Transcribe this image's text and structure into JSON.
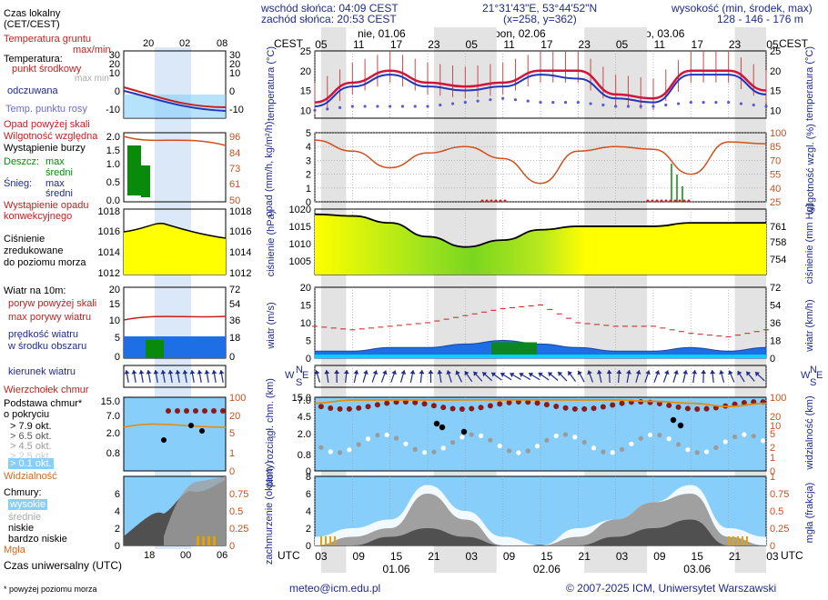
{
  "header": {
    "sunrise": "wschód słońca: 04:09 CEST",
    "sunset": "zachód słońca: 20:53 CEST",
    "coords": "21°31'43\"E, 53°44'52\"N",
    "grid": "(x=258, y=362)",
    "height_title": "wysokość (min, środek, max)",
    "height_values": "128 - 146 - 176 m",
    "tz_left": "CEST",
    "tz_right": "CEST",
    "utc_left": "UTC",
    "utc_right": "UTC"
  },
  "days": [
    {
      "label": "nie, 01.06"
    },
    {
      "label": "pon, 02.06"
    },
    {
      "label": "wto, 03.06"
    }
  ],
  "cest_ticks": [
    "05",
    "11",
    "17",
    "23",
    "05",
    "11",
    "17",
    "23",
    "05",
    "11",
    "17",
    "23",
    "05"
  ],
  "utc_ticks": [
    "03",
    "09",
    "15",
    "21",
    "03",
    "09",
    "15",
    "21",
    "03",
    "09",
    "15",
    "21",
    "03"
  ],
  "utc_dates": [
    "01.06",
    "02.06",
    "03.06"
  ],
  "legend": {
    "czas_lokalny": "Czas lokalny",
    "czas_lokalny2": "(CET/CEST)",
    "lt_ticks": [
      "20",
      "02",
      "08"
    ],
    "temp_gruntu": "Temperatura gruntu",
    "temp_gruntu2": "max/min",
    "temperatura": "Temperatura:",
    "punkt": "punkt środkowy",
    "maxmin": "max min",
    "odczuwana": "odczuwana",
    "rosy": "Temp. punktu rosy",
    "opad_pow": "Opad powyżej skali",
    "wilg": "Wilgotność względna",
    "burza": "Wystąpienie burzy",
    "deszcz": "Deszcz:",
    "max": "max",
    "sredni": "średni",
    "snieg": "Śnieg:",
    "wyst_opadu": "Wystąpienie opadu",
    "konw": "konwekcyjnego",
    "cisn": "Ciśnienie",
    "zred": "zredukowane",
    "poziom": "do poziomu morza",
    "wiatr10": "Wiatr na 10m:",
    "poryw_pow": "poryw powyżej skali",
    "max_por": "max porywy wiatru",
    "pred": "prędkość wiatru",
    "w_srodku": "w środku obszaru",
    "kierunek": "kierunek wiatru",
    "wierz": "Wierzchołek chmur",
    "podst": "Podstawa chmur*",
    "o_pokr": "o pokryciu",
    "okt79": "> 7.9 okt.",
    "okt65": "> 6.5 okt.",
    "okt45": "> 4.5 okt.",
    "okt25": "> 2.5 okt.",
    "okt01": "> 0.1 okt.",
    "widz": "Widzialność",
    "chmury": "Chmury:",
    "wysokie": "wysokie",
    "srednie": "średnie",
    "niskie": "niskie",
    "b_niskie": "bardzo niskie",
    "mgla": "Mgła",
    "czas_uni": "Czas uniwersalny (UTC)",
    "ut_ticks": [
      "18",
      "00",
      "06"
    ],
    "footnote": "* powyżej poziomu morza"
  },
  "axes": {
    "temp_left": "temperatura (°C)",
    "temp_right": "temperatura (°C)",
    "opad_left": "opad (mm/h, kg/m²/h)",
    "wilg_right": "wilgotność wzgl. (%)",
    "cisn_left": "ciśnienie (hPa)",
    "cisn_right": "ciśnienie (mm Hg)",
    "wiatr_left": "wiatr (m/s)",
    "wiatr_right": "wiatr (km/h)",
    "chm_left": "pion. rozciągł. chm. (km)",
    "widz_right": "widzialność (km)",
    "zach_left": "zachmurzenie (oktanty)",
    "mgla_right": "mgła (frakcja)",
    "dir_letters": [
      "N",
      "W",
      "E",
      "S"
    ]
  },
  "footer": {
    "email": "meteo@icm.edu.pl",
    "copyright": "© 2007-2025 ICM, Uniwersytet Warszawski"
  },
  "colors": {
    "navy": "#1f2b8a",
    "red": "#c81e1e",
    "orange": "#d2691e",
    "sky": "#87cefa",
    "night": "#dcdcdc"
  },
  "chart_data": [
    {
      "type": "line",
      "title": "temperatura",
      "ylim": [
        8,
        25
      ],
      "y_ticks": [
        10,
        15,
        20,
        25
      ],
      "x_hours": [
        0,
        6,
        12,
        18,
        24,
        30,
        36,
        42,
        48,
        54,
        60,
        66,
        72
      ],
      "series": [
        {
          "values": [
            12,
            17,
            20,
            17,
            16,
            17,
            20,
            20,
            14,
            13,
            20,
            20,
            15
          ]
        },
        {
          "values": [
            11,
            16,
            19,
            16,
            15,
            16,
            19,
            18,
            13,
            12,
            19,
            19,
            14
          ]
        },
        {
          "values": [
            10,
            11,
            11,
            11,
            12,
            13,
            12,
            12,
            11,
            11,
            12,
            12,
            11
          ]
        }
      ]
    },
    {
      "type": "line",
      "title": "wilgotność",
      "ylim": [
        25,
        100
      ],
      "y_ticks_left": [
        0,
        1,
        2,
        3,
        4,
        5
      ],
      "y_ticks_right": [
        25,
        40,
        55,
        70,
        85,
        100
      ],
      "x_hours": [
        0,
        6,
        12,
        18,
        24,
        30,
        36,
        42,
        48,
        54,
        60,
        66,
        72
      ],
      "values": [
        92,
        80,
        62,
        78,
        85,
        72,
        45,
        80,
        85,
        82,
        55,
        90,
        88
      ]
    },
    {
      "type": "area",
      "title": "ciśnienie",
      "ylim": [
        1001,
        1020
      ],
      "y_ticks_left": [
        1005,
        1010,
        1015,
        1020
      ],
      "y_ticks_right": [
        754,
        758,
        761
      ],
      "x_hours": [
        0,
        6,
        12,
        18,
        24,
        30,
        36,
        42,
        48,
        54,
        60,
        66,
        72
      ],
      "values": [
        1018.5,
        1018,
        1016,
        1012,
        1009,
        1011,
        1014,
        1015,
        1015,
        1015,
        1016,
        1016,
        1016
      ]
    },
    {
      "type": "line",
      "title": "wiatr",
      "ylim": [
        0,
        20
      ],
      "y_ticks_left": [
        0,
        5,
        10,
        15,
        20
      ],
      "y_ticks_right": [
        0,
        18,
        36,
        54,
        72
      ],
      "x_hours": [
        0,
        6,
        12,
        18,
        24,
        30,
        36,
        42,
        48,
        54,
        60,
        66,
        72
      ],
      "series": [
        {
          "values": [
            9,
            8,
            9,
            10,
            12,
            14,
            15,
            10,
            9,
            9,
            7,
            6,
            8
          ]
        },
        {
          "values": [
            2,
            2,
            3,
            3,
            4,
            5,
            4,
            3,
            2,
            2,
            3,
            2,
            3
          ]
        }
      ]
    },
    {
      "type": "line",
      "title": "widzialność",
      "ylim": [
        0,
        15
      ],
      "y_ticks_left": [
        0,
        0.8,
        2.0,
        4.5,
        7.0,
        15.0
      ],
      "y_ticks_right": [
        0,
        1,
        2,
        5,
        10,
        20,
        100
      ],
      "x_hours": [
        0,
        6,
        12,
        18,
        24,
        30,
        36,
        42,
        48,
        54,
        60,
        66,
        72
      ],
      "values": [
        6.5,
        7,
        7.2,
        7,
        7.3,
        7.5,
        7.3,
        7.2,
        7.2,
        6.8,
        6.5,
        6,
        6.5
      ]
    },
    {
      "type": "area",
      "title": "zachmurzenie",
      "ylim": [
        0,
        8
      ],
      "y_ticks_left": [
        0,
        2,
        4,
        6,
        8
      ],
      "y_ticks_right": [
        0,
        0.25,
        0.5,
        0.75,
        1
      ],
      "x_hours": [
        0,
        6,
        12,
        18,
        24,
        30,
        36,
        42,
        48,
        54,
        60,
        66,
        72
      ],
      "series": [
        {
          "values": [
            1,
            2,
            3,
            7,
            4,
            1,
            0,
            2,
            3,
            5,
            7,
            2,
            1
          ]
        },
        {
          "values": [
            0,
            1,
            2,
            6,
            3,
            0,
            0,
            1,
            3,
            5,
            6,
            1,
            0
          ]
        },
        {
          "values": [
            0,
            0,
            1,
            2,
            1,
            0,
            0,
            0,
            1,
            2,
            3,
            0,
            0
          ]
        }
      ]
    }
  ]
}
